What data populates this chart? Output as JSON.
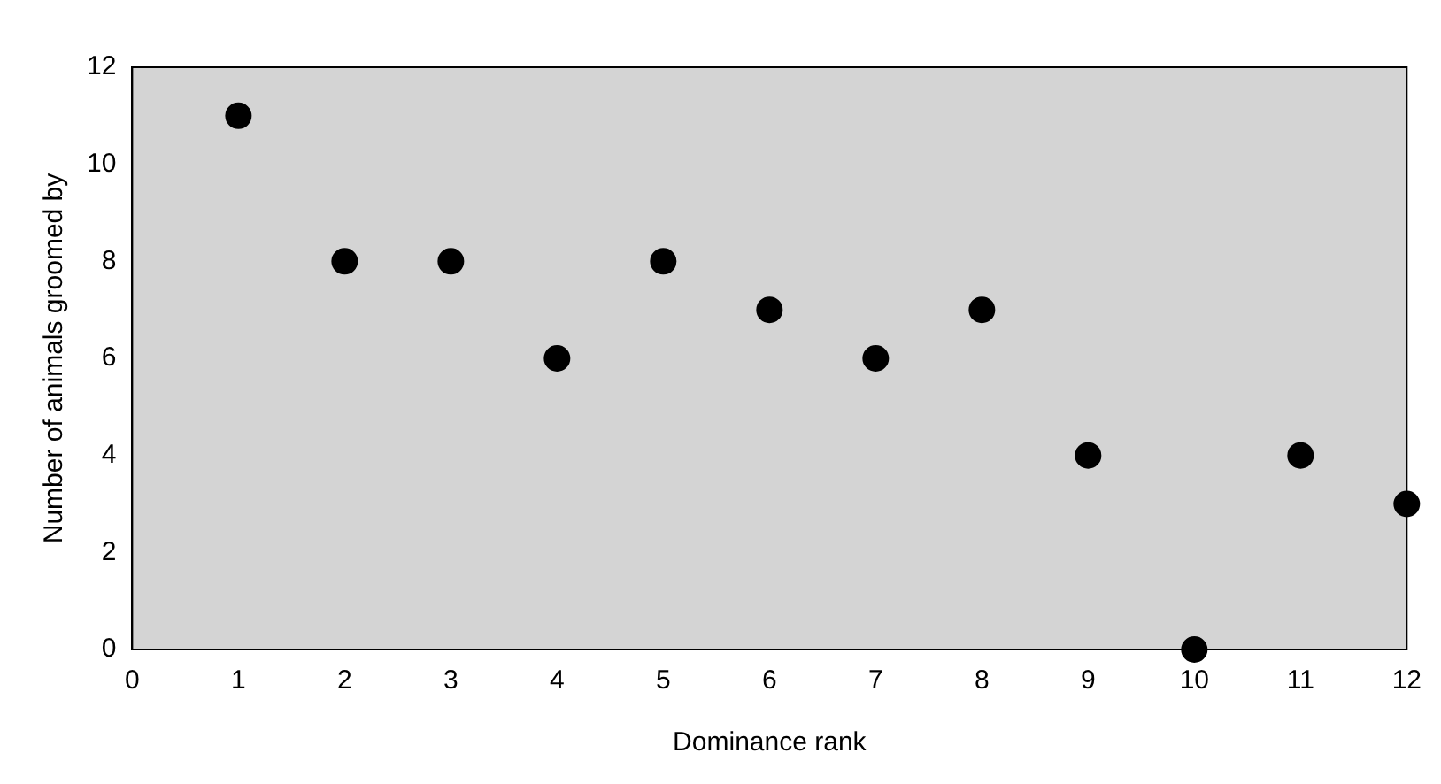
{
  "chart_data": {
    "type": "scatter",
    "xlabel": "Dominance rank",
    "ylabel": "Number of animals groomed by",
    "x": [
      1,
      2,
      3,
      4,
      5,
      6,
      7,
      8,
      9,
      10,
      11,
      12
    ],
    "series": [
      {
        "color": "#000000",
        "values": [
          11,
          8,
          8,
          6,
          8,
          7,
          6,
          7,
          4,
          0,
          4,
          3
        ]
      }
    ],
    "xlim": [
      0,
      12
    ],
    "xticks": [
      0,
      1,
      2,
      3,
      4,
      5,
      6,
      7,
      8,
      9,
      10,
      11,
      12
    ],
    "ylim": [
      0,
      12
    ],
    "yticks": [
      0,
      2,
      4,
      6,
      8,
      10,
      12
    ],
    "grid": false,
    "legend": false,
    "marker": "circle"
  }
}
